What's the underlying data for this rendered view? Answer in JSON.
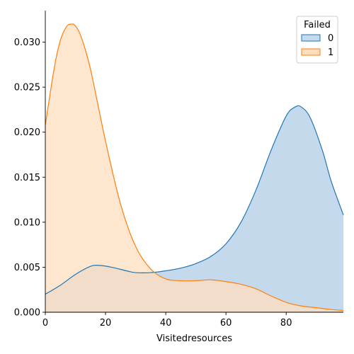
{
  "chart_data": {
    "type": "area",
    "subtype": "kde",
    "title": "",
    "xlabel": "Visitedresources",
    "ylabel": "",
    "xlim": [
      0,
      99
    ],
    "ylim": [
      0,
      0.0335
    ],
    "xticks": [
      0,
      20,
      40,
      60,
      80
    ],
    "yticks": [
      0.0,
      0.005,
      0.01,
      0.015,
      0.02,
      0.025,
      0.03
    ],
    "ytick_labels": [
      "0.000",
      "0.005",
      "0.010",
      "0.015",
      "0.020",
      "0.025",
      "0.030"
    ],
    "legend": {
      "title": "Failed",
      "placement": "top-right",
      "entries": [
        "0",
        "1"
      ]
    },
    "series": [
      {
        "name": "0",
        "color": "#1f77b4",
        "fill": "#c5d9ec",
        "x": [
          0,
          5,
          10,
          15,
          18,
          22,
          27,
          30,
          35,
          40,
          45,
          50,
          55,
          60,
          65,
          70,
          75,
          80,
          83,
          85,
          88,
          92,
          95,
          99
        ],
        "y": [
          0.002,
          0.003,
          0.0042,
          0.0051,
          0.0052,
          0.005,
          0.0046,
          0.0044,
          0.0044,
          0.0046,
          0.0049,
          0.0054,
          0.0062,
          0.0076,
          0.01,
          0.0136,
          0.018,
          0.0218,
          0.0228,
          0.0228,
          0.0216,
          0.018,
          0.0145,
          0.0108
        ]
      },
      {
        "name": "1",
        "color": "#ff7f0e",
        "fill": "#ffddbd",
        "x": [
          0,
          3,
          5,
          7,
          8.5,
          10,
          12,
          15,
          20,
          25,
          30,
          35,
          40,
          45,
          50,
          55,
          60,
          65,
          70,
          75,
          80,
          85,
          90,
          95,
          99
        ],
        "y": [
          0.0208,
          0.0272,
          0.0302,
          0.0317,
          0.032,
          0.0318,
          0.0305,
          0.027,
          0.019,
          0.012,
          0.0073,
          0.0048,
          0.0037,
          0.0035,
          0.0035,
          0.0036,
          0.0034,
          0.0031,
          0.0026,
          0.0018,
          0.0011,
          0.0007,
          0.0005,
          0.0003,
          0.0002
        ]
      }
    ]
  }
}
